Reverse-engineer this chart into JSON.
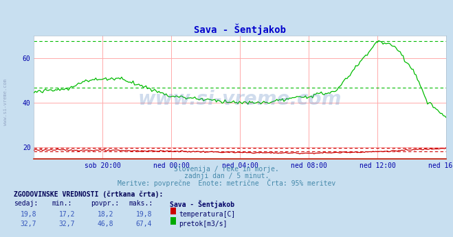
{
  "title": "Sava - Šentjakob",
  "title_color": "#0000cc",
  "bg_color": "#c8dff0",
  "plot_bg_color": "#ffffff",
  "grid_color": "#ffaaaa",
  "ylim": [
    15,
    70
  ],
  "yticks": [
    20,
    40,
    60
  ],
  "tick_color": "#0000aa",
  "temp_color": "#cc0000",
  "flow_color": "#00bb00",
  "subtitle1": "Slovenija / reke in morje.",
  "subtitle2": "zadnji dan / 5 minut.",
  "subtitle3": "Meritve: povprečne  Enote: metrične  Črta: 95% meritev",
  "subtitle_color": "#4488aa",
  "legend_title": "ZGODOVINSKE VREDNOSTI (črtkana črta):",
  "legend_headers": [
    "sedaj:",
    "min.:",
    "povpr.:",
    "maks.:",
    "Sava - Šentjakob"
  ],
  "temp_label": "temperatura[C]",
  "flow_label": "pretok[m3/s]",
  "watermark": "www.si-vreme.com",
  "watermark_color": "#4477bb",
  "watermark_alpha": 0.25,
  "x_labels": [
    "sob 20:00",
    "ned 00:00",
    "ned 04:00",
    "ned 08:00",
    "ned 12:00",
    "ned 16:00"
  ],
  "n_points": 288,
  "temp_avg": 18.2,
  "temp_max": 19.8,
  "flow_avg": 46.8,
  "flow_max": 67.4
}
